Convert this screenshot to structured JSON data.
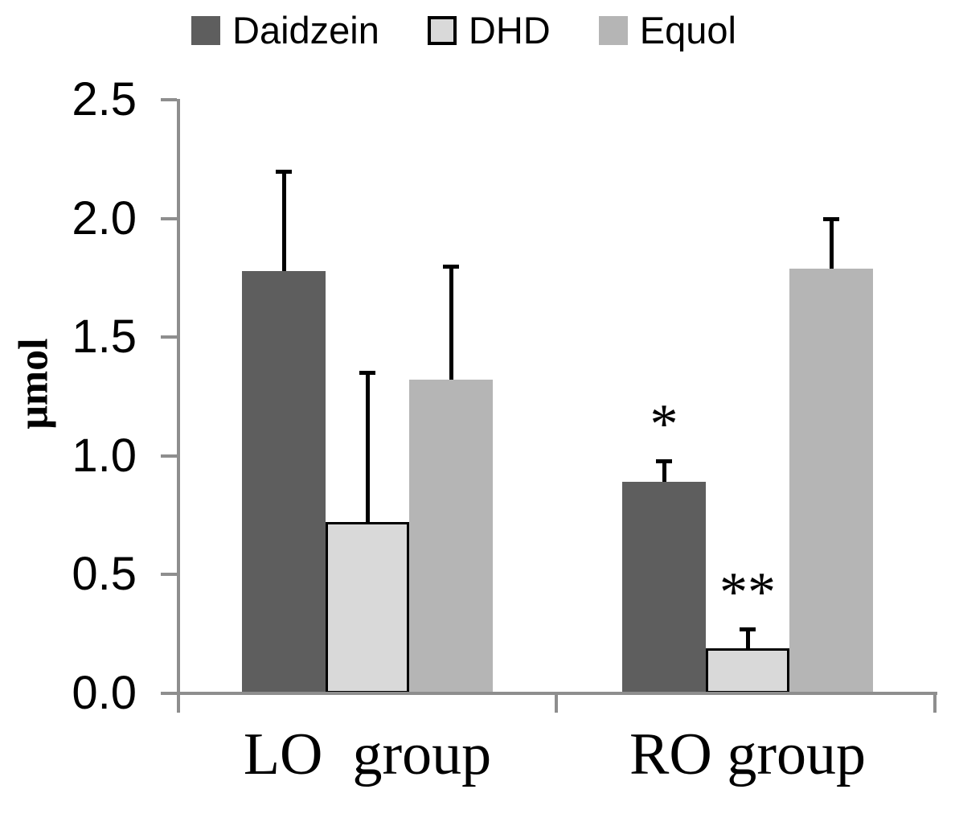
{
  "chart_data": {
    "type": "bar",
    "title": "",
    "xlabel": "",
    "ylabel": "μmol",
    "categories": [
      "LO  group",
      "RO group"
    ],
    "y_ticks": [
      "0.0",
      "0.5",
      "1.0",
      "1.5",
      "2.0",
      "2.5"
    ],
    "ylim": [
      0,
      2.5
    ],
    "grid": false,
    "legend_position": "top",
    "axis_color": "#8e8e8e",
    "error_bar_color": "#000000",
    "series": [
      {
        "name": "Daidzein",
        "color": "#5e5e5e",
        "border": null,
        "values": [
          1.78,
          0.89
        ],
        "error_top": [
          2.2,
          0.98
        ],
        "sig": [
          "",
          "*"
        ]
      },
      {
        "name": "DHD",
        "color": "#d9d9d9",
        "border": "#000000",
        "values": [
          0.72,
          0.19
        ],
        "error_top": [
          1.35,
          0.27
        ],
        "sig": [
          "",
          "**"
        ]
      },
      {
        "name": "Equol",
        "color": "#b5b5b5",
        "border": null,
        "values": [
          1.32,
          1.79
        ],
        "error_top": [
          1.8,
          2.0
        ],
        "sig": [
          "",
          ""
        ]
      }
    ]
  }
}
